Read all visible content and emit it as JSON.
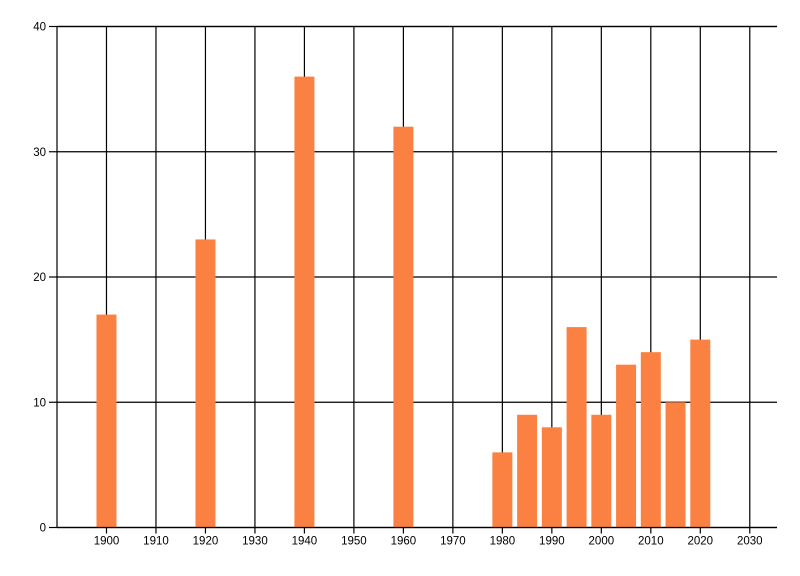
{
  "page": {
    "background": "#FFFFFF"
  },
  "chart_data": {
    "type": "bar",
    "title": "",
    "xlabel": "",
    "ylabel": "",
    "x": [
      1900,
      1920,
      1940,
      1960,
      1980,
      1985,
      1990,
      1995,
      2000,
      2005,
      2010,
      2015,
      2020
    ],
    "values": [
      17,
      23,
      36,
      32,
      6,
      9,
      8,
      16,
      9,
      13,
      14,
      10,
      15
    ],
    "xlim": [
      1890,
      2035.5
    ],
    "ylim": [
      0,
      40
    ],
    "x_ticks": [
      1900,
      1910,
      1920,
      1930,
      1940,
      1950,
      1960,
      1970,
      1980,
      1990,
      2000,
      2010,
      2020,
      2030
    ],
    "x_tick_labels": [
      "1900",
      "1910",
      "1920",
      "1930",
      "1940",
      "1950",
      "1960",
      "1970",
      "1980",
      "1990",
      "2000",
      "2010",
      "2020",
      "2030"
    ],
    "y_ticks": [
      0,
      10,
      20,
      30,
      40
    ],
    "y_tick_labels": [
      "0",
      "10",
      "20",
      "30",
      "40"
    ],
    "grid": "on",
    "legend": "none",
    "bar_color": "#FB8142",
    "line_color": "#000000",
    "text_color": "#000000",
    "background_color": "#FFFFFF"
  }
}
